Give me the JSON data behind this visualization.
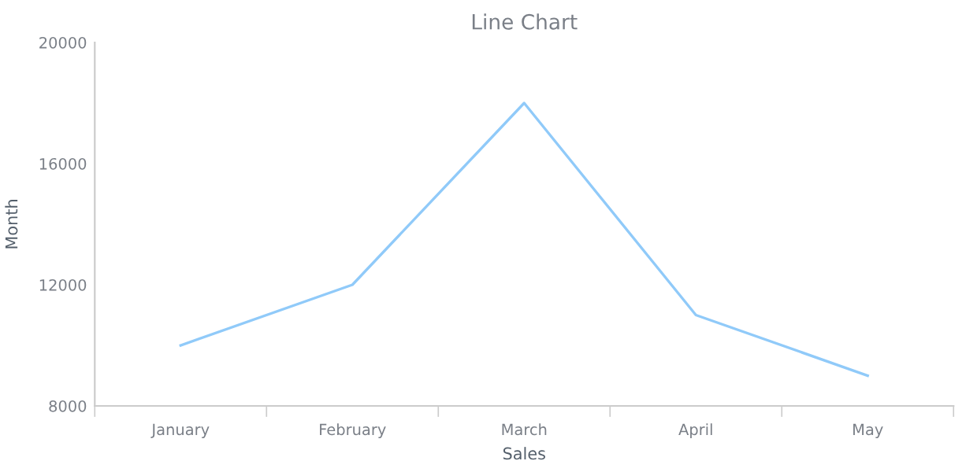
{
  "chart_data": {
    "type": "line",
    "title": "Line Chart",
    "xlabel": "Sales",
    "ylabel": "Month",
    "categories": [
      "January",
      "February",
      "March",
      "April",
      "May"
    ],
    "series": [
      {
        "color": "#90caf9",
        "values": [
          10000,
          12000,
          18000,
          11000,
          9000
        ]
      }
    ],
    "ylim": [
      8000,
      20000
    ],
    "yticks": [
      8000,
      12000,
      16000,
      20000
    ],
    "grid": false,
    "legend": false,
    "marker": "none",
    "line_style": "solid"
  }
}
